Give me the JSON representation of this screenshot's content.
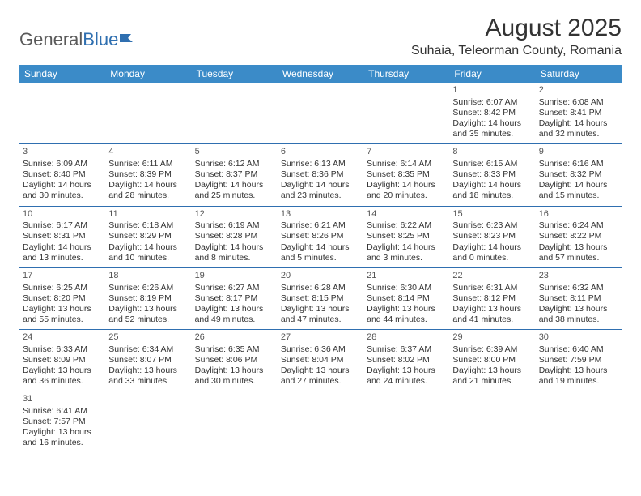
{
  "brand": {
    "part1": "General",
    "part2": "Blue"
  },
  "title": "August 2025",
  "location": "Suhaia, Teleorman County, Romania",
  "columns": [
    "Sunday",
    "Monday",
    "Tuesday",
    "Wednesday",
    "Thursday",
    "Friday",
    "Saturday"
  ],
  "colors": {
    "header_bg": "#3b8bc8",
    "header_text": "#ffffff",
    "row_border": "#2f6fb0",
    "logo_accent": "#2f6fb0",
    "text": "#333333"
  },
  "weeks": [
    [
      null,
      null,
      null,
      null,
      null,
      {
        "n": "1",
        "sr": "6:07 AM",
        "ss": "8:42 PM",
        "dl": "14 hours and 35 minutes."
      },
      {
        "n": "2",
        "sr": "6:08 AM",
        "ss": "8:41 PM",
        "dl": "14 hours and 32 minutes."
      }
    ],
    [
      {
        "n": "3",
        "sr": "6:09 AM",
        "ss": "8:40 PM",
        "dl": "14 hours and 30 minutes."
      },
      {
        "n": "4",
        "sr": "6:11 AM",
        "ss": "8:39 PM",
        "dl": "14 hours and 28 minutes."
      },
      {
        "n": "5",
        "sr": "6:12 AM",
        "ss": "8:37 PM",
        "dl": "14 hours and 25 minutes."
      },
      {
        "n": "6",
        "sr": "6:13 AM",
        "ss": "8:36 PM",
        "dl": "14 hours and 23 minutes."
      },
      {
        "n": "7",
        "sr": "6:14 AM",
        "ss": "8:35 PM",
        "dl": "14 hours and 20 minutes."
      },
      {
        "n": "8",
        "sr": "6:15 AM",
        "ss": "8:33 PM",
        "dl": "14 hours and 18 minutes."
      },
      {
        "n": "9",
        "sr": "6:16 AM",
        "ss": "8:32 PM",
        "dl": "14 hours and 15 minutes."
      }
    ],
    [
      {
        "n": "10",
        "sr": "6:17 AM",
        "ss": "8:31 PM",
        "dl": "14 hours and 13 minutes."
      },
      {
        "n": "11",
        "sr": "6:18 AM",
        "ss": "8:29 PM",
        "dl": "14 hours and 10 minutes."
      },
      {
        "n": "12",
        "sr": "6:19 AM",
        "ss": "8:28 PM",
        "dl": "14 hours and 8 minutes."
      },
      {
        "n": "13",
        "sr": "6:21 AM",
        "ss": "8:26 PM",
        "dl": "14 hours and 5 minutes."
      },
      {
        "n": "14",
        "sr": "6:22 AM",
        "ss": "8:25 PM",
        "dl": "14 hours and 3 minutes."
      },
      {
        "n": "15",
        "sr": "6:23 AM",
        "ss": "8:23 PM",
        "dl": "14 hours and 0 minutes."
      },
      {
        "n": "16",
        "sr": "6:24 AM",
        "ss": "8:22 PM",
        "dl": "13 hours and 57 minutes."
      }
    ],
    [
      {
        "n": "17",
        "sr": "6:25 AM",
        "ss": "8:20 PM",
        "dl": "13 hours and 55 minutes."
      },
      {
        "n": "18",
        "sr": "6:26 AM",
        "ss": "8:19 PM",
        "dl": "13 hours and 52 minutes."
      },
      {
        "n": "19",
        "sr": "6:27 AM",
        "ss": "8:17 PM",
        "dl": "13 hours and 49 minutes."
      },
      {
        "n": "20",
        "sr": "6:28 AM",
        "ss": "8:15 PM",
        "dl": "13 hours and 47 minutes."
      },
      {
        "n": "21",
        "sr": "6:30 AM",
        "ss": "8:14 PM",
        "dl": "13 hours and 44 minutes."
      },
      {
        "n": "22",
        "sr": "6:31 AM",
        "ss": "8:12 PM",
        "dl": "13 hours and 41 minutes."
      },
      {
        "n": "23",
        "sr": "6:32 AM",
        "ss": "8:11 PM",
        "dl": "13 hours and 38 minutes."
      }
    ],
    [
      {
        "n": "24",
        "sr": "6:33 AM",
        "ss": "8:09 PM",
        "dl": "13 hours and 36 minutes."
      },
      {
        "n": "25",
        "sr": "6:34 AM",
        "ss": "8:07 PM",
        "dl": "13 hours and 33 minutes."
      },
      {
        "n": "26",
        "sr": "6:35 AM",
        "ss": "8:06 PM",
        "dl": "13 hours and 30 minutes."
      },
      {
        "n": "27",
        "sr": "6:36 AM",
        "ss": "8:04 PM",
        "dl": "13 hours and 27 minutes."
      },
      {
        "n": "28",
        "sr": "6:37 AM",
        "ss": "8:02 PM",
        "dl": "13 hours and 24 minutes."
      },
      {
        "n": "29",
        "sr": "6:39 AM",
        "ss": "8:00 PM",
        "dl": "13 hours and 21 minutes."
      },
      {
        "n": "30",
        "sr": "6:40 AM",
        "ss": "7:59 PM",
        "dl": "13 hours and 19 minutes."
      }
    ],
    [
      {
        "n": "31",
        "sr": "6:41 AM",
        "ss": "7:57 PM",
        "dl": "13 hours and 16 minutes."
      },
      null,
      null,
      null,
      null,
      null,
      null
    ]
  ],
  "labels": {
    "sunrise": "Sunrise: ",
    "sunset": "Sunset: ",
    "daylight": "Daylight: "
  }
}
